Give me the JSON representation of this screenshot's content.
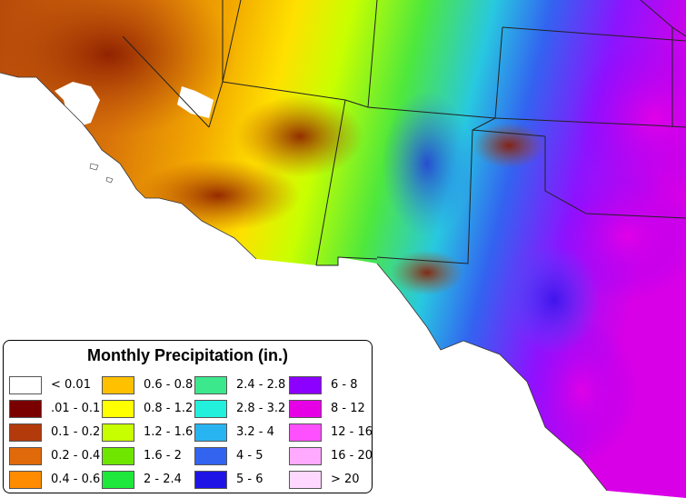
{
  "legend": {
    "title": "Monthly Precipitation (in.)",
    "items": [
      {
        "label": "< 0.01",
        "color": "#ffffff"
      },
      {
        "label": ".01 - 0.1",
        "color": "#7a0000"
      },
      {
        "label": "0.1 - 0.2",
        "color": "#b23a0b"
      },
      {
        "label": "0.2 - 0.4",
        "color": "#e06a0a"
      },
      {
        "label": "0.4 - 0.6",
        "color": "#ff8c00"
      },
      {
        "label": "0.6 - 0.8",
        "color": "#ffc000"
      },
      {
        "label": "0.8 - 1.2",
        "color": "#ffff00"
      },
      {
        "label": "1.2 - 1.6",
        "color": "#c8ff00"
      },
      {
        "label": "1.6 - 2",
        "color": "#6ee600"
      },
      {
        "label": "2 - 2.4",
        "color": "#1ee83c"
      },
      {
        "label": "2.4 - 2.8",
        "color": "#3ce88c"
      },
      {
        "label": "2.8 - 3.2",
        "color": "#22f0dc"
      },
      {
        "label": "3.2 - 4",
        "color": "#28b4f0"
      },
      {
        "label": "4 - 5",
        "color": "#3264f0"
      },
      {
        "label": "5 - 6",
        "color": "#1e14e6"
      },
      {
        "label": "6 - 8",
        "color": "#8c00ff"
      },
      {
        "label": "8 - 12",
        "color": "#e600e6"
      },
      {
        "label": "12 - 16",
        "color": "#ff50ff"
      },
      {
        "label": "16 - 20",
        "color": "#ffaaff"
      },
      {
        "label": "> 20",
        "color": "#ffd8ff"
      }
    ]
  }
}
